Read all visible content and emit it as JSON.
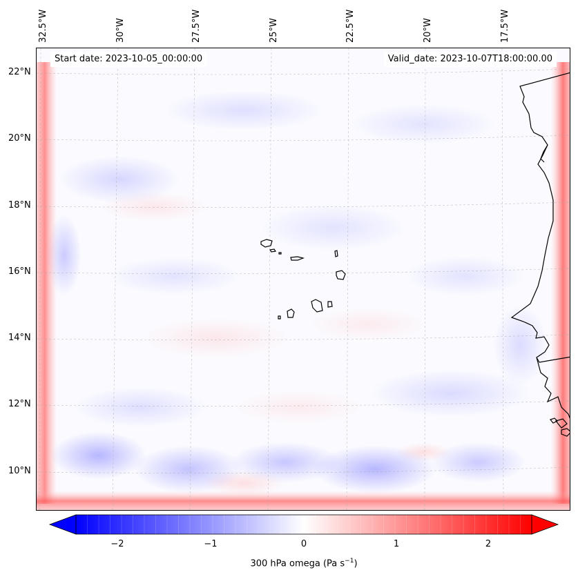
{
  "map": {
    "start_label": "Start date: 2023-10-05_00:00:00",
    "valid_label": "Valid_date: 2023-10-07T18:00:00.00",
    "lon_labels": [
      "32.5°W",
      "30°W",
      "27.5°W",
      "25°W",
      "22.5°W",
      "20°W",
      "17.5°W"
    ],
    "lat_labels": [
      "22°N",
      "20°N",
      "18°N",
      "16°N",
      "14°N",
      "12°N",
      "10°N"
    ],
    "extent": {
      "lon_min": -32.6,
      "lon_max": -15.6,
      "lat_min": 8.9,
      "lat_max": 22.7
    },
    "field": "300 hPa omega",
    "colormap": [
      "#0000ff",
      "#ffffff",
      "#ff0000"
    ]
  },
  "colorbar": {
    "ticks": [
      "−2",
      "−1",
      "0",
      "1",
      "2"
    ],
    "range": [
      -2.75,
      2.75
    ],
    "label_main": "300 hPa omega (Pa s",
    "label_exp": "−1",
    "label_end": ")",
    "extend": "both"
  }
}
